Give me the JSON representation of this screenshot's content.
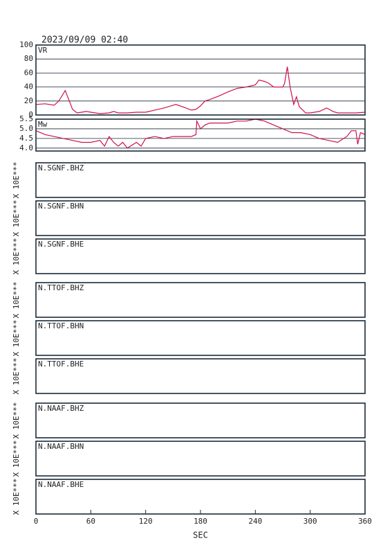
{
  "timestamp": "2023/09/09 02:40",
  "x_axis": {
    "label": "SEC",
    "xlim": [
      0,
      360
    ],
    "xticks": [
      0,
      60,
      120,
      180,
      240,
      300,
      360
    ]
  },
  "chart_data": [
    {
      "type": "line",
      "title": "VR",
      "color": "#d0104c",
      "grid": true,
      "ylim": [
        0,
        100
      ],
      "yticks": [
        0,
        20,
        40,
        60,
        80,
        100
      ],
      "x": [
        0,
        10,
        20,
        25,
        32,
        35,
        40,
        45,
        50,
        55,
        60,
        70,
        80,
        85,
        90,
        100,
        110,
        120,
        130,
        140,
        150,
        153,
        160,
        170,
        175,
        180,
        185,
        190,
        200,
        210,
        220,
        230,
        240,
        244,
        250,
        255,
        260,
        270,
        272,
        275,
        278,
        282,
        285,
        288,
        295,
        300,
        310,
        318,
        325,
        330,
        340,
        350,
        360
      ],
      "values": [
        15,
        16,
        14,
        20,
        35,
        25,
        8,
        3,
        4,
        5,
        4,
        2,
        3,
        5,
        3,
        3,
        4,
        4,
        7,
        10,
        14,
        15,
        12,
        7,
        8,
        13,
        20,
        22,
        27,
        33,
        38,
        40,
        43,
        50,
        48,
        45,
        40,
        40,
        45,
        69,
        40,
        15,
        26,
        12,
        3,
        3,
        5,
        10,
        5,
        3,
        3,
        3,
        4
      ]
    },
    {
      "type": "line",
      "title": "Mw",
      "color": "#d0104c",
      "grid": true,
      "ylim": [
        3.85,
        5.5
      ],
      "yticks": [
        {
          "value": 4,
          "label": "4.0"
        },
        4.5,
        {
          "value": 5,
          "label": "5.0"
        },
        5.5
      ],
      "x": [
        0,
        10,
        20,
        30,
        40,
        50,
        60,
        70,
        75,
        80,
        85,
        90,
        95,
        100,
        110,
        115,
        120,
        130,
        140,
        150,
        160,
        170,
        175,
        176,
        180,
        185,
        190,
        200,
        210,
        220,
        230,
        240,
        250,
        260,
        270,
        280,
        290,
        300,
        310,
        320,
        330,
        340,
        345,
        350,
        352,
        355,
        360
      ],
      "values": [
        4.9,
        4.7,
        4.6,
        4.5,
        4.4,
        4.3,
        4.3,
        4.4,
        4.1,
        4.6,
        4.3,
        4.1,
        4.3,
        4.0,
        4.3,
        4.1,
        4.5,
        4.6,
        4.5,
        4.6,
        4.6,
        4.6,
        4.7,
        5.4,
        5.0,
        5.2,
        5.3,
        5.3,
        5.3,
        5.4,
        5.4,
        5.5,
        5.4,
        5.2,
        5.0,
        4.8,
        4.8,
        4.7,
        4.5,
        4.4,
        4.3,
        4.6,
        4.9,
        4.9,
        4.2,
        4.8,
        4.7
      ]
    }
  ],
  "panels": [
    {
      "label": "N.SGNF.BHZ",
      "ylabel": "X 10E***"
    },
    {
      "label": "N.SGNF.BHN",
      "ylabel": "X 10E***"
    },
    {
      "label": "N.SGNF.BHE",
      "ylabel": "X 10E***"
    },
    {
      "label": "N.TTOF.BHZ",
      "ylabel": "X 10E***"
    },
    {
      "label": "N.TTOF.BHN",
      "ylabel": "X 10E***"
    },
    {
      "label": "N.TTOF.BHE",
      "ylabel": "X 10E***"
    },
    {
      "label": "N.NAAF.BHZ",
      "ylabel": "X 10E***"
    },
    {
      "label": "N.NAAF.BHN",
      "ylabel": "X 10E***"
    },
    {
      "label": "N.NAAF.BHE",
      "ylabel": "X 10E***"
    }
  ]
}
